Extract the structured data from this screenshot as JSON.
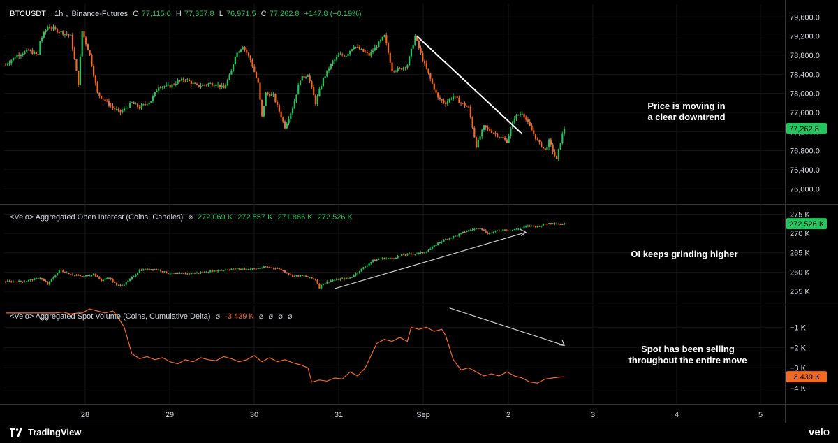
{
  "header": {
    "symbol": "BTCUSDT",
    "interval": "1h",
    "exchange": "Binance-Futures",
    "ohlc": {
      "o_label": "O",
      "o": "77,115.0",
      "h_label": "H",
      "h": "77,357.8",
      "l_label": "L",
      "l": "76,971.5",
      "c_label": "C",
      "c": "77,262.8",
      "chg": "+147.8 (+0.19%)"
    }
  },
  "oi_header": {
    "title": "<Velo> Aggregated Open Interest (Coins, Candles)",
    "null_glyph": "⌀",
    "values": [
      "272.069 K",
      "272.557 K",
      "271.886 K",
      "272.526 K"
    ]
  },
  "spot_header": {
    "title": "<Velo> Aggregated Spot Volume (Coins, Cumulative Delta)",
    "null_glyph": "⌀",
    "value": "-3.439 K",
    "trailing": [
      "⌀",
      "⌀",
      "⌀",
      "⌀"
    ]
  },
  "annotations": {
    "price": [
      "Price is moving in",
      "a clear downtrend"
    ],
    "oi": [
      "OI keeps grinding higher"
    ],
    "spot": [
      "Spot has been selling",
      "throughout the entire move"
    ]
  },
  "brand": {
    "name": "TradingView",
    "velo": "velo"
  },
  "colors": {
    "up": "#22c55e",
    "down": "#f26a21",
    "bg": "#000000",
    "grid": "#2a2a2a",
    "text": "#d1d4dc"
  },
  "chart_data": [
    {
      "type": "candlestick",
      "title": "BTCUSDT, 1h, Binance-Futures",
      "x": [
        "28",
        "29",
        "30",
        "31",
        "Sep",
        "2",
        "3",
        "4",
        "5"
      ],
      "y_ticks": [
        "79,600.0",
        "79,200.0",
        "78,800.0",
        "78,400.0",
        "78,000.0",
        "77,600.0",
        "77,200.0",
        "76,800.0",
        "76,400.0",
        "76,000.0"
      ],
      "ylim": [
        75800,
        79750
      ],
      "last_price": "77,262.8",
      "close_anchors": [
        [
          0,
          78600
        ],
        [
          6,
          78800
        ],
        [
          12,
          78900
        ],
        [
          17,
          78800
        ],
        [
          18,
          79100
        ],
        [
          22,
          79400
        ],
        [
          28,
          79300
        ],
        [
          34,
          79200
        ],
        [
          38,
          78200
        ],
        [
          40,
          79300
        ],
        [
          44,
          78800
        ],
        [
          48,
          78000
        ],
        [
          52,
          77850
        ],
        [
          56,
          77700
        ],
        [
          60,
          77600
        ],
        [
          66,
          77800
        ],
        [
          70,
          77700
        ],
        [
          76,
          77850
        ],
        [
          80,
          78150
        ],
        [
          86,
          78150
        ],
        [
          90,
          78250
        ],
        [
          94,
          78300
        ],
        [
          100,
          78150
        ],
        [
          106,
          78200
        ],
        [
          110,
          78200
        ],
        [
          114,
          78100
        ],
        [
          118,
          78450
        ],
        [
          120,
          78800
        ],
        [
          124,
          79000
        ],
        [
          128,
          78700
        ],
        [
          132,
          78200
        ],
        [
          134,
          77500
        ],
        [
          136,
          78000
        ],
        [
          140,
          77950
        ],
        [
          146,
          77300
        ],
        [
          150,
          77700
        ],
        [
          154,
          78300
        ],
        [
          158,
          78400
        ],
        [
          162,
          77800
        ],
        [
          166,
          78300
        ],
        [
          170,
          78600
        ],
        [
          174,
          78800
        ],
        [
          178,
          78800
        ],
        [
          182,
          79000
        ],
        [
          186,
          78900
        ],
        [
          190,
          78800
        ],
        [
          194,
          79000
        ],
        [
          198,
          79200
        ],
        [
          202,
          78500
        ],
        [
          206,
          78500
        ],
        [
          210,
          78600
        ],
        [
          214,
          79200
        ],
        [
          218,
          78700
        ],
        [
          222,
          78300
        ],
        [
          226,
          77900
        ],
        [
          230,
          77800
        ],
        [
          234,
          77950
        ],
        [
          238,
          77800
        ],
        [
          242,
          77700
        ],
        [
          246,
          76900
        ],
        [
          250,
          77300
        ],
        [
          254,
          77200
        ],
        [
          258,
          77100
        ],
        [
          262,
          77000
        ],
        [
          266,
          77500
        ],
        [
          270,
          77600
        ],
        [
          274,
          77300
        ],
        [
          278,
          77000
        ],
        [
          282,
          76800
        ],
        [
          284,
          77000
        ],
        [
          288,
          76600
        ],
        [
          290,
          77000
        ],
        [
          292,
          77262.8
        ]
      ],
      "trendline": [
        [
          215,
          79200
        ],
        [
          270,
          77150
        ]
      ]
    },
    {
      "type": "candlestick",
      "title": "<Velo> Aggregated Open Interest (Coins, Candles)",
      "y_ticks": [
        "275 K",
        "270 K",
        "265 K",
        "260 K",
        "255 K"
      ],
      "ylim": [
        253000,
        276000
      ],
      "last_value": "272.526 K",
      "close_anchors": [
        [
          0,
          257500
        ],
        [
          10,
          257600
        ],
        [
          18,
          258500
        ],
        [
          22,
          256800
        ],
        [
          28,
          260500
        ],
        [
          34,
          259500
        ],
        [
          40,
          258800
        ],
        [
          46,
          259500
        ],
        [
          50,
          257800
        ],
        [
          54,
          258600
        ],
        [
          58,
          256500
        ],
        [
          62,
          256800
        ],
        [
          66,
          258500
        ],
        [
          70,
          260500
        ],
        [
          76,
          260800
        ],
        [
          80,
          260600
        ],
        [
          84,
          259800
        ],
        [
          90,
          259500
        ],
        [
          96,
          259600
        ],
        [
          102,
          259900
        ],
        [
          108,
          260300
        ],
        [
          112,
          260500
        ],
        [
          116,
          260700
        ],
        [
          120,
          260800
        ],
        [
          130,
          260800
        ],
        [
          136,
          261300
        ],
        [
          142,
          261000
        ],
        [
          146,
          260100
        ],
        [
          150,
          259000
        ],
        [
          156,
          259000
        ],
        [
          162,
          258000
        ],
        [
          164,
          256000
        ],
        [
          166,
          257000
        ],
        [
          170,
          257800
        ],
        [
          176,
          258200
        ],
        [
          180,
          258500
        ],
        [
          184,
          260000
        ],
        [
          188,
          261500
        ],
        [
          192,
          263000
        ],
        [
          196,
          263500
        ],
        [
          202,
          263600
        ],
        [
          208,
          264500
        ],
        [
          214,
          264800
        ],
        [
          218,
          265000
        ],
        [
          222,
          266000
        ],
        [
          226,
          267500
        ],
        [
          230,
          268500
        ],
        [
          236,
          269500
        ],
        [
          240,
          270500
        ],
        [
          244,
          271000
        ],
        [
          248,
          271500
        ],
        [
          252,
          270000
        ],
        [
          256,
          270500
        ],
        [
          260,
          271000
        ],
        [
          264,
          270800
        ],
        [
          270,
          271500
        ],
        [
          274,
          272000
        ],
        [
          278,
          271800
        ],
        [
          282,
          272500
        ],
        [
          286,
          272800
        ],
        [
          290,
          272400
        ],
        [
          292,
          272526
        ]
      ],
      "trendline": [
        [
          172,
          255700
        ],
        [
          272,
          270300
        ]
      ]
    },
    {
      "type": "line",
      "title": "<Velo> Aggregated Spot Volume (Coins, Cumulative Delta)",
      "y_ticks": [
        "−1 K",
        "−2 K",
        "−3 K",
        "−4 K"
      ],
      "ylim": [
        -4.5,
        -0.2
      ],
      "last_value": "−3.439 K",
      "points": [
        [
          0,
          -0.3
        ],
        [
          2,
          -0.3
        ],
        [
          4,
          -0.3
        ],
        [
          6,
          -0.3
        ],
        [
          8,
          -0.3
        ],
        [
          10,
          -0.3
        ],
        [
          14,
          -0.3
        ],
        [
          18,
          -0.3
        ],
        [
          22,
          -0.3
        ],
        [
          26,
          -0.3
        ],
        [
          30,
          -0.25
        ],
        [
          34,
          -0.35
        ],
        [
          38,
          -0.3
        ],
        [
          40,
          -0.3
        ],
        [
          44,
          -0.1
        ],
        [
          48,
          -0.2
        ],
        [
          52,
          -0.3
        ],
        [
          56,
          -0.2
        ],
        [
          58,
          -0.4
        ],
        [
          62,
          -1.0
        ],
        [
          66,
          -2.3
        ],
        [
          70,
          -2.55
        ],
        [
          74,
          -2.45
        ],
        [
          78,
          -2.6
        ],
        [
          82,
          -2.5
        ],
        [
          86,
          -2.7
        ],
        [
          90,
          -2.8
        ],
        [
          94,
          -2.6
        ],
        [
          98,
          -2.7
        ],
        [
          102,
          -2.5
        ],
        [
          106,
          -2.6
        ],
        [
          110,
          -2.65
        ],
        [
          114,
          -2.45
        ],
        [
          118,
          -2.55
        ],
        [
          122,
          -2.7
        ],
        [
          126,
          -2.6
        ],
        [
          130,
          -2.4
        ],
        [
          134,
          -2.7
        ],
        [
          138,
          -2.5
        ],
        [
          142,
          -2.7
        ],
        [
          146,
          -2.6
        ],
        [
          150,
          -2.75
        ],
        [
          154,
          -2.85
        ],
        [
          158,
          -3.0
        ],
        [
          160,
          -3.7
        ],
        [
          164,
          -3.6
        ],
        [
          168,
          -3.65
        ],
        [
          172,
          -3.5
        ],
        [
          176,
          -3.55
        ],
        [
          180,
          -3.2
        ],
        [
          184,
          -3.4
        ],
        [
          188,
          -3.0
        ],
        [
          190,
          -2.6
        ],
        [
          194,
          -1.8
        ],
        [
          198,
          -1.6
        ],
        [
          202,
          -1.7
        ],
        [
          206,
          -1.5
        ],
        [
          210,
          -1.7
        ],
        [
          212,
          -1.0
        ],
        [
          216,
          -1.1
        ],
        [
          220,
          -1.0
        ],
        [
          224,
          -1.2
        ],
        [
          228,
          -1.1
        ],
        [
          230,
          -1.4
        ],
        [
          234,
          -2.6
        ],
        [
          238,
          -3.1
        ],
        [
          242,
          -3.0
        ],
        [
          246,
          -3.2
        ],
        [
          250,
          -3.4
        ],
        [
          254,
          -3.3
        ],
        [
          258,
          -3.4
        ],
        [
          262,
          -3.2
        ],
        [
          266,
          -3.4
        ],
        [
          270,
          -3.5
        ],
        [
          274,
          -3.7
        ],
        [
          278,
          -3.75
        ],
        [
          282,
          -3.55
        ],
        [
          286,
          -3.5
        ],
        [
          290,
          -3.45
        ],
        [
          292,
          -3.439
        ]
      ],
      "trendline": [
        [
          232,
          -0.05
        ],
        [
          292,
          -1.9
        ]
      ]
    }
  ]
}
